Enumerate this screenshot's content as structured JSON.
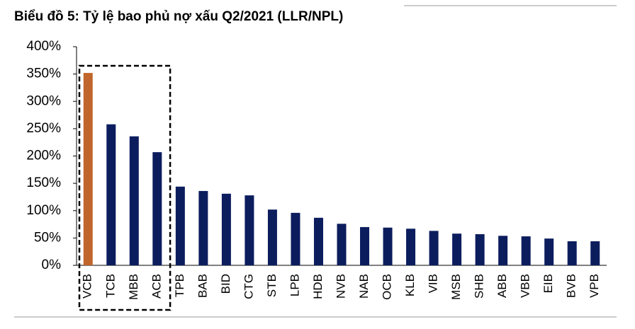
{
  "chart_data": {
    "type": "bar",
    "title": "Biểu đồ 5: Tỷ lệ bao phủ nợ xấu Q2/2021 (LLR/NPL)",
    "categories": [
      "VCB",
      "TCB",
      "MBB",
      "ACB",
      "TPB",
      "BAB",
      "BID",
      "CTG",
      "STB",
      "LPB",
      "HDB",
      "NVB",
      "NAB",
      "OCB",
      "KLB",
      "VIB",
      "MSB",
      "SHB",
      "ABB",
      "VBB",
      "EIB",
      "BVB",
      "VPB"
    ],
    "values": [
      352,
      258,
      236,
      207,
      144,
      136,
      131,
      128,
      102,
      96,
      87,
      76,
      70,
      69,
      67,
      63,
      58,
      57,
      54,
      53,
      49,
      44,
      44
    ],
    "colors": [
      "#c0652b",
      "#0c1d5e",
      "#0c1d5e",
      "#0c1d5e",
      "#0c1d5e",
      "#0c1d5e",
      "#0c1d5e",
      "#0c1d5e",
      "#0c1d5e",
      "#0c1d5e",
      "#0c1d5e",
      "#0c1d5e",
      "#0c1d5e",
      "#0c1d5e",
      "#0c1d5e",
      "#0c1d5e",
      "#0c1d5e",
      "#0c1d5e",
      "#0c1d5e",
      "#0c1d5e",
      "#0c1d5e",
      "#0c1d5e",
      "#0c1d5e"
    ],
    "ylim": [
      0,
      400
    ],
    "yticks": [
      {
        "value": 0,
        "label": "0%"
      },
      {
        "value": 50,
        "label": "50%"
      },
      {
        "value": 100,
        "label": "100%"
      },
      {
        "value": 150,
        "label": "150%"
      },
      {
        "value": 200,
        "label": "200%"
      },
      {
        "value": 250,
        "label": "250%"
      },
      {
        "value": 300,
        "label": "300%"
      },
      {
        "value": 350,
        "label": "350%"
      },
      {
        "value": 400,
        "label": "400%"
      }
    ],
    "grid": false
  }
}
